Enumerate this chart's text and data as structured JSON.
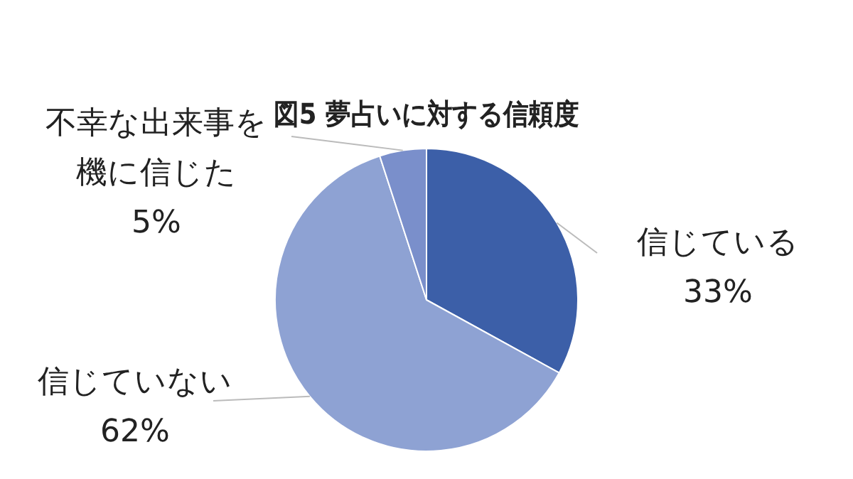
{
  "chart_data": {
    "type": "pie",
    "title": "図5 夢占いに対する信頼度",
    "categories": [
      "信じている",
      "信じていない",
      "不幸な出来事を機に信じた"
    ],
    "values": [
      33,
      62,
      5
    ],
    "value_labels": [
      "33%",
      "62%",
      "5%"
    ],
    "colors": [
      "#3c5fa8",
      "#8ea2d3",
      "#7a8fcb"
    ],
    "legend": false
  }
}
